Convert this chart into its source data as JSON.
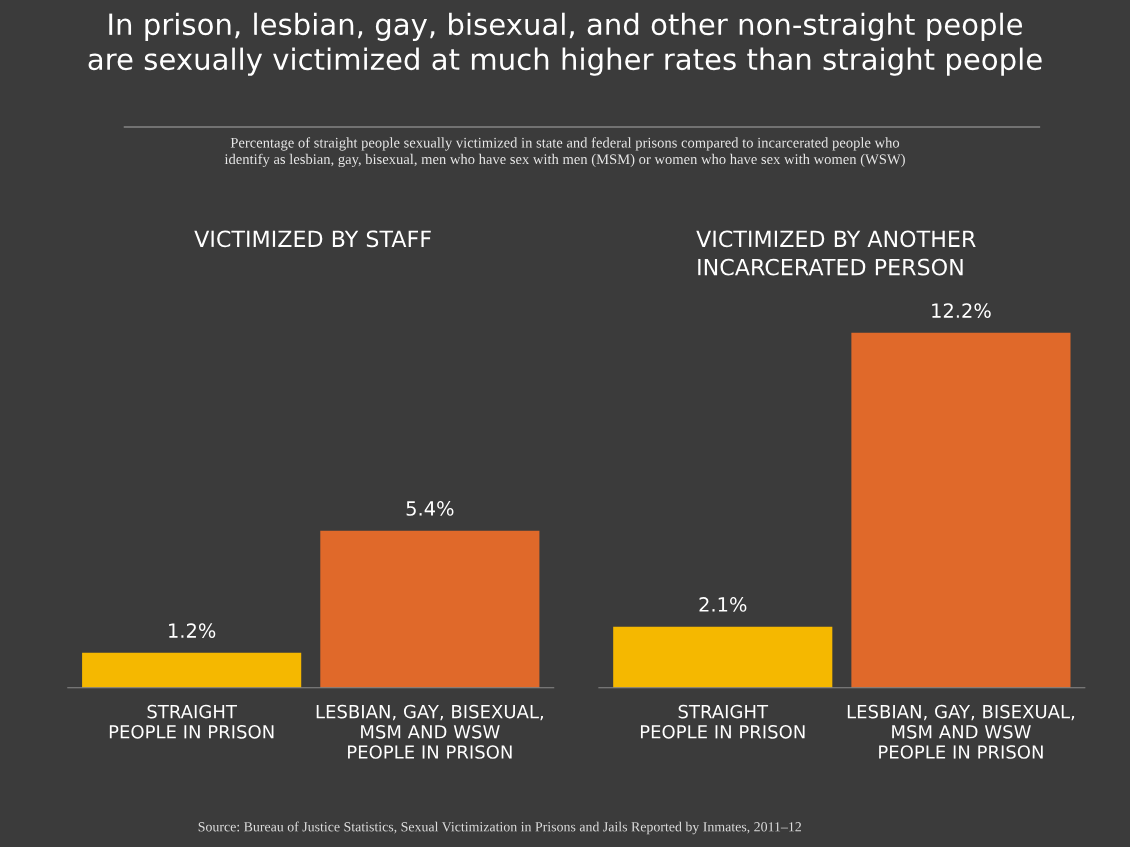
{
  "chart_data": [
    {
      "type": "other",
      "title": "In prison, lesbian, gay, bisexual, and other non-straight people\nare sexually victimized at much higher rates than straight people",
      "subtitle": "Percentage of straight people sexually victimized in state and federal prisons compared to incarcerated people who\nidentify as lesbian, gay, bisexual, men who have sex with men (MSM) or women who have sex with women (WSW)",
      "annotations": [
        "Source: Bureau of Justice Statistics, Sexual Victimization in Prisons and Jails Reported by Inmates, 2011–12"
      ]
    },
    {
      "type": "bar",
      "title": "VICTIMIZED BY STAFF",
      "categories": [
        "STRAIGHT\nPEOPLE IN PRISON",
        "LESBIAN, GAY, BISEXUAL,\nMSM AND WSW\nPEOPLE IN PRISON"
      ],
      "values": [
        1.2,
        5.4
      ],
      "colors": [
        "#f5b800",
        "#e0692a"
      ],
      "value_labels": [
        "1.2%",
        "5.4%"
      ],
      "tick_labels": "x"
    },
    {
      "type": "bar",
      "title": "VICTIMIZED BY ANOTHER\nINCARCERATED PERSON",
      "categories": [
        "STRAIGHT\nPEOPLE IN PRISON",
        "LESBIAN, GAY, BISEXUAL,\nMSM AND WSW\nPEOPLE IN PRISON"
      ],
      "values": [
        2.1,
        12.2
      ],
      "colors": [
        "#f5b800",
        "#e0692a"
      ],
      "value_labels": [
        "2.1%",
        "12.2%"
      ],
      "tick_labels": "x"
    }
  ]
}
